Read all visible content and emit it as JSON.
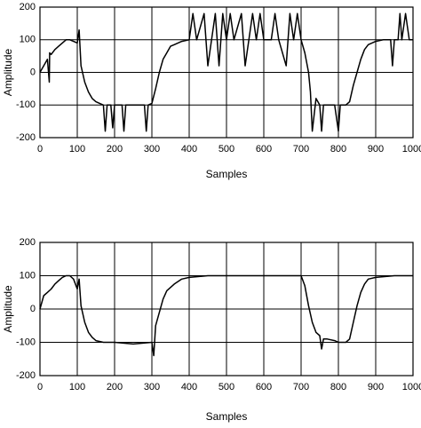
{
  "chart_data": [
    {
      "type": "line",
      "xlabel": "Samples",
      "ylabel": "Amplitude",
      "color": "#000000",
      "grid": true,
      "xlim": [
        0,
        1000
      ],
      "ylim": [
        -200,
        200
      ],
      "xticks": [
        0,
        100,
        200,
        300,
        400,
        500,
        600,
        700,
        800,
        900,
        1000
      ],
      "yticks": [
        -200,
        -100,
        0,
        100,
        200
      ],
      "x": [
        0,
        10,
        20,
        25,
        26,
        30,
        40,
        50,
        60,
        70,
        80,
        90,
        100,
        105,
        110,
        120,
        130,
        140,
        150,
        160,
        170,
        175,
        180,
        190,
        195,
        200,
        210,
        220,
        225,
        230,
        240,
        260,
        280,
        285,
        290,
        300,
        310,
        320,
        330,
        340,
        350,
        360,
        380,
        400,
        410,
        420,
        440,
        450,
        460,
        470,
        480,
        490,
        500,
        510,
        520,
        540,
        550,
        560,
        570,
        580,
        590,
        600,
        620,
        630,
        640,
        660,
        670,
        680,
        690,
        700,
        710,
        720,
        725,
        730,
        740,
        750,
        755,
        760,
        770,
        780,
        790,
        800,
        805,
        810,
        820,
        830,
        840,
        850,
        860,
        870,
        880,
        900,
        920,
        940,
        945,
        950,
        960,
        965,
        970,
        980,
        990,
        1000
      ],
      "values": [
        0,
        20,
        40,
        -30,
        60,
        55,
        70,
        80,
        90,
        100,
        100,
        95,
        90,
        130,
        20,
        -30,
        -60,
        -80,
        -90,
        -95,
        -100,
        -180,
        -100,
        -100,
        -170,
        -100,
        -100,
        -100,
        -180,
        -100,
        -100,
        -100,
        -100,
        -180,
        -100,
        -95,
        -50,
        0,
        40,
        60,
        80,
        85,
        95,
        100,
        180,
        100,
        180,
        20,
        100,
        180,
        20,
        180,
        100,
        180,
        100,
        180,
        20,
        100,
        180,
        100,
        180,
        100,
        100,
        180,
        100,
        20,
        180,
        100,
        180,
        100,
        60,
        0,
        -60,
        -180,
        -80,
        -100,
        -180,
        -100,
        -100,
        -100,
        -100,
        -180,
        -100,
        -100,
        -100,
        -90,
        -40,
        0,
        40,
        70,
        85,
        95,
        100,
        100,
        20,
        100,
        100,
        180,
        100,
        180,
        100,
        100
      ]
    },
    {
      "type": "line",
      "xlabel": "Samples",
      "ylabel": "Amplitude",
      "color": "#000000",
      "grid": true,
      "xlim": [
        0,
        1000
      ],
      "ylim": [
        -200,
        200
      ],
      "xticks": [
        0,
        100,
        200,
        300,
        400,
        500,
        600,
        700,
        800,
        900,
        1000
      ],
      "yticks": [
        -200,
        -100,
        0,
        100,
        200
      ],
      "x": [
        0,
        10,
        20,
        30,
        40,
        50,
        60,
        70,
        80,
        90,
        100,
        105,
        110,
        120,
        130,
        140,
        150,
        170,
        200,
        250,
        300,
        305,
        310,
        320,
        330,
        340,
        360,
        380,
        400,
        450,
        500,
        550,
        600,
        650,
        700,
        710,
        720,
        730,
        740,
        750,
        755,
        760,
        770,
        790,
        800,
        820,
        830,
        840,
        850,
        860,
        870,
        880,
        900,
        950,
        1000
      ],
      "values": [
        0,
        40,
        50,
        60,
        75,
        85,
        95,
        100,
        100,
        90,
        60,
        90,
        10,
        -40,
        -70,
        -85,
        -95,
        -100,
        -100,
        -105,
        -100,
        -140,
        -50,
        -10,
        30,
        55,
        75,
        90,
        95,
        100,
        100,
        100,
        100,
        100,
        100,
        70,
        10,
        -40,
        -70,
        -80,
        -120,
        -90,
        -90,
        -95,
        -100,
        -100,
        -90,
        -40,
        10,
        50,
        75,
        90,
        95,
        100,
        100
      ]
    }
  ]
}
